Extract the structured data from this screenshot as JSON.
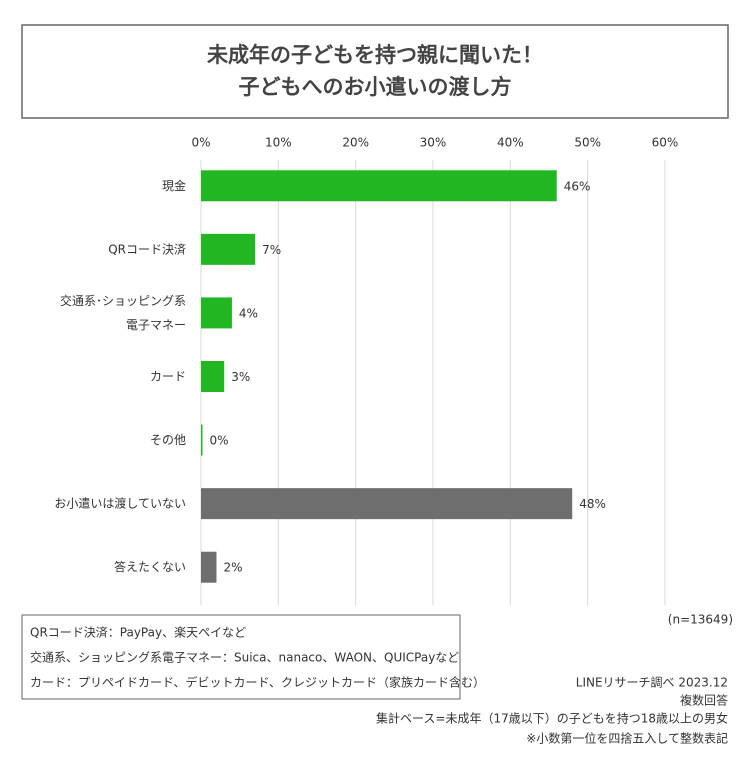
{
  "chart_data": {
    "type": "bar",
    "orientation": "horizontal",
    "title": [
      "未成年の子どもを持つ親に聞いた！",
      "子どもへのお小遣いの渡し方"
    ],
    "categories": [
      "現金",
      "QRコード決済",
      "交通系･ショッピング系\n電子マネー",
      "カード",
      "その他",
      "お小遣いは渡していない",
      "答えたくない"
    ],
    "values": [
      46,
      7,
      4,
      3,
      0,
      48,
      2
    ],
    "value_labels": [
      "46%",
      "7%",
      "4%",
      "3%",
      "0%",
      "48%",
      "2%"
    ],
    "colors": [
      "#22b722",
      "#22b722",
      "#22b722",
      "#22b722",
      "#22b722",
      "#6e6e6e",
      "#6e6e6e"
    ],
    "xlim": [
      0,
      60
    ],
    "xticks": [
      {
        "value": 0,
        "label": "0%"
      },
      {
        "value": 10,
        "label": "10%"
      },
      {
        "value": 20,
        "label": "20%"
      },
      {
        "value": 30,
        "label": "30%"
      },
      {
        "value": 40,
        "label": "40%"
      },
      {
        "value": 50,
        "label": "50%"
      },
      {
        "value": 60,
        "label": "60%"
      }
    ],
    "grid": true,
    "sample_size": "(n=13649)",
    "notes": [
      "QRコード決済：PayPay、楽天ペイなど",
      "交通系、ショッピング系電子マネー：Suica、nanaco、WAON、QUICPayなど",
      "カード：プリペイドカード、デビットカード、クレジットカード（家族カード含む）"
    ],
    "source": [
      "LINEリサーチ調べ 2023.12",
      "複数回答",
      "集計ベース=未成年（17歳以下）の子どもを持つ18歳以上の男女",
      "※小数第一位を四捨五入して整数表記"
    ]
  }
}
